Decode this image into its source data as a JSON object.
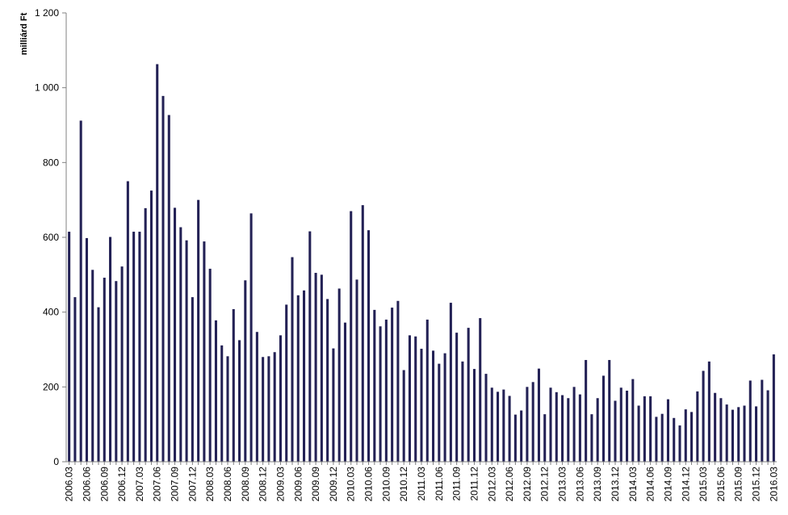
{
  "chart_data": {
    "type": "bar",
    "title": "",
    "xlabel": "",
    "ylabel": "milliárd Ft",
    "ylim": [
      0,
      1200
    ],
    "yticks": [
      0,
      200,
      400,
      600,
      800,
      1000,
      1200
    ],
    "ytick_labels": [
      "0",
      "200",
      "400",
      "600",
      "800",
      "1 000",
      "1 200"
    ],
    "grid": false,
    "bar_color": "#232155",
    "categories": [
      "2006.03",
      "2006.04",
      "2006.05",
      "2006.06",
      "2006.07",
      "2006.08",
      "2006.09",
      "2006.10",
      "2006.11",
      "2006.12",
      "2007.01",
      "2007.02",
      "2007.03",
      "2007.04",
      "2007.05",
      "2007.06",
      "2007.07",
      "2007.08",
      "2007.09",
      "2007.10",
      "2007.11",
      "2007.12",
      "2008.01",
      "2008.02",
      "2008.03",
      "2008.04",
      "2008.05",
      "2008.06",
      "2008.07",
      "2008.08",
      "2008.09",
      "2008.10",
      "2008.11",
      "2008.12",
      "2009.01",
      "2009.02",
      "2009.03",
      "2009.04",
      "2009.05",
      "2009.06",
      "2009.07",
      "2009.08",
      "2009.09",
      "2009.10",
      "2009.11",
      "2009.12",
      "2010.01",
      "2010.02",
      "2010.03",
      "2010.04",
      "2010.05",
      "2010.06",
      "2010.07",
      "2010.08",
      "2010.09",
      "2010.10",
      "2010.11",
      "2010.12",
      "2011.01",
      "2011.02",
      "2011.03",
      "2011.04",
      "2011.05",
      "2011.06",
      "2011.07",
      "2011.08",
      "2011.09",
      "2011.10",
      "2011.11",
      "2011.12",
      "2012.01",
      "2012.02",
      "2012.03",
      "2012.04",
      "2012.05",
      "2012.06",
      "2012.07",
      "2012.08",
      "2012.09",
      "2012.10",
      "2012.11",
      "2012.12",
      "2013.01",
      "2013.02",
      "2013.03",
      "2013.04",
      "2013.05",
      "2013.06",
      "2013.07",
      "2013.08",
      "2013.09",
      "2013.10",
      "2013.11",
      "2013.12",
      "2014.01",
      "2014.02",
      "2014.03",
      "2014.04",
      "2014.05",
      "2014.06",
      "2014.07",
      "2014.08",
      "2014.09",
      "2014.10",
      "2014.11",
      "2014.12",
      "2015.01",
      "2015.02",
      "2015.03",
      "2015.04",
      "2015.05",
      "2015.06",
      "2015.07",
      "2015.08",
      "2015.09",
      "2015.10",
      "2015.11",
      "2015.12",
      "2016.01",
      "2016.02",
      "2016.03"
    ],
    "tick_labels_shown": [
      "2006.03",
      "2006.06",
      "2006.09",
      "2006.12",
      "2007.03",
      "2007.06",
      "2007.09",
      "2007.12",
      "2008.03",
      "2008.06",
      "2008.09",
      "2008.12",
      "2009.03",
      "2009.06",
      "2009.09",
      "2009.12",
      "2010.03",
      "2010.06",
      "2010.09",
      "2010.12",
      "2011.03",
      "2011.06",
      "2011.09",
      "2011.12",
      "2012.03",
      "2012.06",
      "2012.09",
      "2012.12",
      "2013.03",
      "2013.06",
      "2013.09",
      "2013.12",
      "2014.03",
      "2014.06",
      "2014.09",
      "2014.12",
      "2015.03",
      "2015.06",
      "2015.09",
      "2015.12",
      "2016.03"
    ],
    "values": [
      615,
      440,
      912,
      598,
      513,
      413,
      492,
      601,
      483,
      522,
      750,
      615,
      615,
      678,
      725,
      1063,
      978,
      927,
      679,
      627,
      592,
      440,
      700,
      589,
      516,
      378,
      311,
      282,
      408,
      325,
      485,
      664,
      347,
      280,
      282,
      293,
      338,
      420,
      547,
      445,
      458,
      616,
      505,
      500,
      435,
      303,
      463,
      372,
      670,
      487,
      686,
      619,
      406,
      362,
      380,
      412,
      430,
      245,
      338,
      335,
      302,
      380,
      297,
      262,
      290,
      425,
      345,
      268,
      358,
      248,
      384,
      235,
      198,
      187,
      193,
      176,
      126,
      137,
      200,
      213,
      249,
      127,
      198,
      186,
      178,
      170,
      200,
      180,
      272,
      127,
      170,
      230,
      272,
      163,
      198,
      190,
      221,
      150,
      175,
      175,
      120,
      128,
      167,
      117,
      97,
      140,
      133,
      188,
      243,
      268,
      184,
      170,
      153,
      139,
      146,
      150,
      217,
      148,
      219,
      191,
      287
    ]
  }
}
